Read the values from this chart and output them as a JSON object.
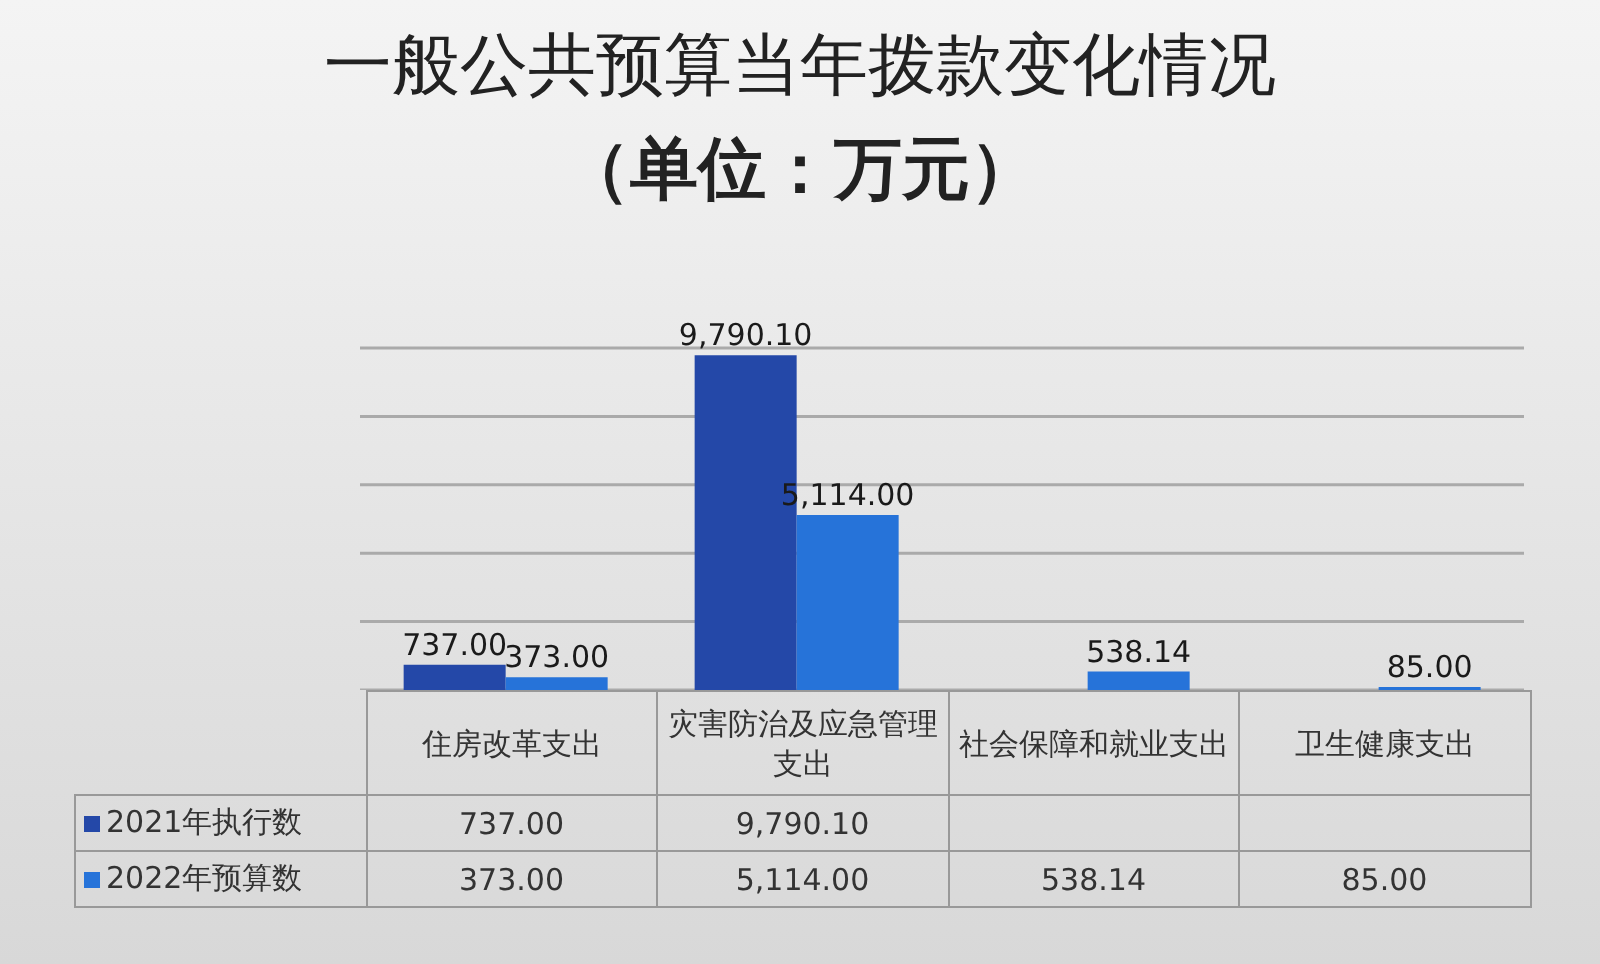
{
  "chart_data": {
    "type": "bar",
    "title": "一般公共预算当年拨款变化情况",
    "subtitle": "（单位：万元）",
    "categories": [
      "住房改革支出",
      "灾害防治及应急管理支出",
      "社会保障和就业支出",
      "卫生健康支出"
    ],
    "series": [
      {
        "name": "2021年执行数",
        "color": "#2448a8",
        "values": [
          737.0,
          9790.1,
          null,
          null
        ],
        "value_labels": [
          "737.00",
          "9,790.10",
          null,
          null
        ]
      },
      {
        "name": "2022年预算数",
        "color": "#2673d9",
        "values": [
          373.0,
          5114.0,
          538.14,
          85.0
        ],
        "value_labels": [
          "373.00",
          "5,114.00",
          "538.14",
          "85.00"
        ]
      }
    ],
    "grid": "y",
    "legend": "bottom",
    "tick_labels": "x"
  }
}
